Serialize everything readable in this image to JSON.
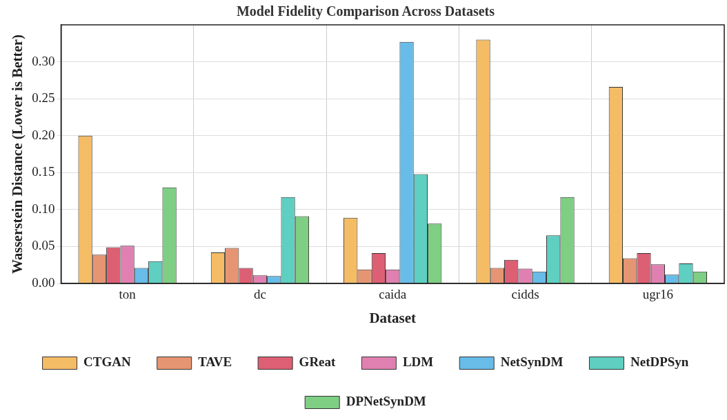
{
  "chart_data": {
    "type": "bar",
    "title": "Model Fidelity Comparison Across Datasets",
    "xlabel": "Dataset",
    "ylabel": "Wasserstein Distance (Lower is Better)",
    "categories": [
      "ton",
      "dc",
      "caida",
      "cidds",
      "ugr16"
    ],
    "series": [
      {
        "name": "CTGAN",
        "color": "#f5bc66",
        "values": [
          0.2,
          0.042,
          0.089,
          0.33,
          0.266
        ]
      },
      {
        "name": "TAVE",
        "color": "#e69572",
        "values": [
          0.039,
          0.048,
          0.019,
          0.021,
          0.034
        ]
      },
      {
        "name": "GReat",
        "color": "#dd5f73",
        "values": [
          0.049,
          0.021,
          0.041,
          0.032,
          0.041
        ]
      },
      {
        "name": "LDM",
        "color": "#df80b1",
        "values": [
          0.051,
          0.011,
          0.019,
          0.02,
          0.026
        ]
      },
      {
        "name": "NetSynDM",
        "color": "#68bce8",
        "values": [
          0.021,
          0.01,
          0.327,
          0.016,
          0.012
        ]
      },
      {
        "name": "NetDPSyn",
        "color": "#5ecfc0",
        "values": [
          0.03,
          0.117,
          0.148,
          0.065,
          0.027
        ]
      },
      {
        "name": "DPNetSynDM",
        "color": "#7ece84",
        "values": [
          0.13,
          0.091,
          0.081,
          0.117,
          0.016
        ]
      }
    ],
    "ylim": [
      0,
      0.35
    ],
    "yticks": [
      {
        "value": 0,
        "label": "0.00"
      },
      {
        "value": 0.05,
        "label": "0.05"
      },
      {
        "value": 0.1,
        "label": "0.10"
      },
      {
        "value": 0.15,
        "label": "0.15"
      },
      {
        "value": 0.2,
        "label": "0.20"
      },
      {
        "value": 0.25,
        "label": "0.25"
      },
      {
        "value": 0.3,
        "label": "0.30"
      }
    ],
    "grid": true,
    "legend": "bottom"
  }
}
